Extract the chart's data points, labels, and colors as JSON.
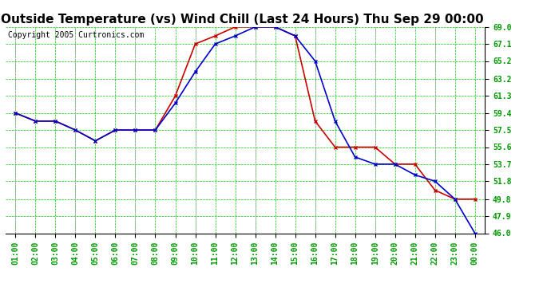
{
  "title": "Outside Temperature (vs) Wind Chill (Last 24 Hours) Thu Sep 29 00:00",
  "copyright": "Copyright 2005 Curtronics.com",
  "x_labels": [
    "01:00",
    "02:00",
    "03:00",
    "04:00",
    "05:00",
    "06:00",
    "07:00",
    "08:00",
    "09:00",
    "10:00",
    "11:00",
    "12:00",
    "13:00",
    "14:00",
    "15:00",
    "16:00",
    "17:00",
    "18:00",
    "19:00",
    "20:00",
    "21:00",
    "22:00",
    "23:00",
    "00:00"
  ],
  "outside_temp": [
    59.4,
    58.5,
    58.5,
    57.5,
    56.3,
    57.5,
    57.5,
    57.5,
    60.5,
    64.0,
    67.1,
    68.0,
    69.0,
    69.0,
    68.0,
    65.2,
    58.5,
    54.5,
    53.7,
    53.7,
    52.5,
    51.8,
    49.8,
    46.0
  ],
  "wind_chill": [
    59.4,
    58.5,
    58.5,
    57.5,
    56.3,
    57.5,
    57.5,
    57.5,
    61.3,
    67.1,
    68.0,
    69.0,
    69.0,
    69.0,
    68.0,
    58.5,
    55.6,
    55.6,
    55.6,
    53.7,
    53.7,
    50.8,
    49.8,
    49.8
  ],
  "ylim_min": 46.0,
  "ylim_max": 69.0,
  "yticks": [
    46.0,
    47.9,
    49.8,
    51.8,
    53.7,
    55.6,
    57.5,
    59.4,
    61.3,
    63.2,
    65.2,
    67.1,
    69.0
  ],
  "line_color_temp": "#0000cc",
  "line_color_chill": "#cc0000",
  "bg_color": "#ffffff",
  "grid_color": "#00cc00",
  "vgrid_color": "#aaaaaa",
  "title_fontsize": 11,
  "copyright_fontsize": 7,
  "tick_fontsize": 7,
  "tick_color": "#009900"
}
